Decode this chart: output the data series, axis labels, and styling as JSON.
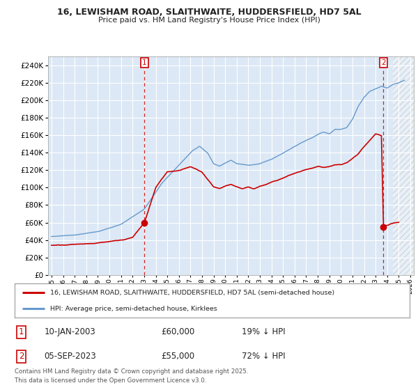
{
  "title": "16, LEWISHAM ROAD, SLAITHWAITE, HUDDERSFIELD, HD7 5AL",
  "subtitle": "Price paid vs. HM Land Registry's House Price Index (HPI)",
  "red_line_label": "16, LEWISHAM ROAD, SLAITHWAITE, HUDDERSFIELD, HD7 5AL (semi-detached house)",
  "blue_line_label": "HPI: Average price, semi-detached house, Kirklees",
  "sale1_date_label": "10-JAN-2003",
  "sale1_price": 60000,
  "sale1_pct": "19% ↓ HPI",
  "sale1_x": 2003.03,
  "sale2_date_label": "05-SEP-2023",
  "sale2_price": 55000,
  "sale2_pct": "72% ↓ HPI",
  "sale2_x": 2023.68,
  "footer": "Contains HM Land Registry data © Crown copyright and database right 2025.\nThis data is licensed under the Open Government Licence v3.0.",
  "red_color": "#cc0000",
  "blue_color": "#6699cc",
  "background_color": "#dce8f5",
  "ylim": [
    0,
    250000
  ],
  "xlim": [
    1994.7,
    2026.3
  ],
  "hatch_start": 2024.5,
  "hpi_keypoints": [
    [
      1995.0,
      44000
    ],
    [
      1997.0,
      46000
    ],
    [
      1999.0,
      50000
    ],
    [
      2001.0,
      58000
    ],
    [
      2003.0,
      75000
    ],
    [
      2004.5,
      105000
    ],
    [
      2007.2,
      143000
    ],
    [
      2007.8,
      148000
    ],
    [
      2008.5,
      140000
    ],
    [
      2009.0,
      128000
    ],
    [
      2009.5,
      125000
    ],
    [
      2010.5,
      132000
    ],
    [
      2011.0,
      128000
    ],
    [
      2012.0,
      126000
    ],
    [
      2013.0,
      128000
    ],
    [
      2014.0,
      133000
    ],
    [
      2015.0,
      140000
    ],
    [
      2016.0,
      148000
    ],
    [
      2017.0,
      155000
    ],
    [
      2017.5,
      158000
    ],
    [
      2018.0,
      162000
    ],
    [
      2018.5,
      165000
    ],
    [
      2019.0,
      163000
    ],
    [
      2019.5,
      168000
    ],
    [
      2020.0,
      168000
    ],
    [
      2020.5,
      170000
    ],
    [
      2021.0,
      180000
    ],
    [
      2021.5,
      195000
    ],
    [
      2022.0,
      205000
    ],
    [
      2022.5,
      212000
    ],
    [
      2023.0,
      215000
    ],
    [
      2023.5,
      218000
    ],
    [
      2024.0,
      216000
    ],
    [
      2024.5,
      220000
    ],
    [
      2025.0,
      222000
    ],
    [
      2025.5,
      225000
    ]
  ],
  "prop_keypoints": [
    [
      1995.0,
      34000
    ],
    [
      1996.0,
      35000
    ],
    [
      1997.0,
      36000
    ],
    [
      1998.0,
      37000
    ],
    [
      1999.0,
      38000
    ],
    [
      2000.0,
      39000
    ],
    [
      2001.0,
      40000
    ],
    [
      2002.0,
      43000
    ],
    [
      2003.03,
      60000
    ],
    [
      2004.0,
      100000
    ],
    [
      2005.0,
      118000
    ],
    [
      2006.0,
      120000
    ],
    [
      2007.0,
      125000
    ],
    [
      2007.5,
      122000
    ],
    [
      2008.0,
      118000
    ],
    [
      2008.5,
      110000
    ],
    [
      2009.0,
      102000
    ],
    [
      2009.5,
      100000
    ],
    [
      2010.0,
      103000
    ],
    [
      2010.5,
      105000
    ],
    [
      2011.0,
      102000
    ],
    [
      2011.5,
      100000
    ],
    [
      2012.0,
      102000
    ],
    [
      2012.5,
      100000
    ],
    [
      2013.0,
      103000
    ],
    [
      2013.5,
      105000
    ],
    [
      2014.0,
      108000
    ],
    [
      2014.5,
      110000
    ],
    [
      2015.0,
      113000
    ],
    [
      2015.5,
      116000
    ],
    [
      2016.0,
      118000
    ],
    [
      2016.5,
      120000
    ],
    [
      2017.0,
      122000
    ],
    [
      2017.5,
      124000
    ],
    [
      2018.0,
      126000
    ],
    [
      2018.5,
      125000
    ],
    [
      2019.0,
      126000
    ],
    [
      2019.5,
      128000
    ],
    [
      2020.0,
      128000
    ],
    [
      2020.5,
      130000
    ],
    [
      2021.0,
      135000
    ],
    [
      2021.5,
      140000
    ],
    [
      2022.0,
      148000
    ],
    [
      2022.5,
      155000
    ],
    [
      2023.0,
      162000
    ],
    [
      2023.5,
      160000
    ],
    [
      2023.68,
      55000
    ],
    [
      2024.0,
      57000
    ],
    [
      2024.5,
      59000
    ],
    [
      2025.0,
      60000
    ]
  ]
}
